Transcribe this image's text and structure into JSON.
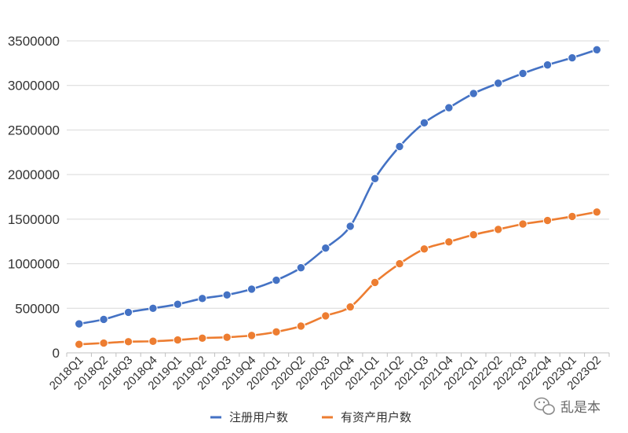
{
  "chart_data": {
    "type": "line",
    "title": "",
    "xlabel": "",
    "ylabel": "",
    "ylim": [
      0,
      3500000
    ],
    "yticks": [
      0,
      500000,
      1000000,
      1500000,
      2000000,
      2500000,
      3000000,
      3500000
    ],
    "grid": true,
    "legend_position": "bottom",
    "categories": [
      "2018Q1",
      "2018Q2",
      "2018Q3",
      "2018Q4",
      "2019Q1",
      "2019Q2",
      "2019Q3",
      "2019Q4",
      "2020Q1",
      "2020Q2",
      "2020Q3",
      "2020Q4",
      "2021Q1",
      "2021Q2",
      "2021Q3",
      "2021Q4",
      "2022Q1",
      "2022Q2",
      "2022Q3",
      "2022Q4",
      "2023Q1",
      "2023Q2"
    ],
    "series": [
      {
        "name": "注册用户数",
        "color": "#4472c4",
        "values": [
          325000,
          375000,
          455000,
          500000,
          545000,
          610000,
          650000,
          715000,
          815000,
          955000,
          1175000,
          1420000,
          1955000,
          2315000,
          2580000,
          2750000,
          2910000,
          3025000,
          3135000,
          3230000,
          3310000,
          3400000
        ]
      },
      {
        "name": "有资产用户数",
        "color": "#ed7d31",
        "values": [
          95000,
          110000,
          125000,
          130000,
          145000,
          165000,
          175000,
          195000,
          235000,
          300000,
          415000,
          515000,
          790000,
          1000000,
          1165000,
          1245000,
          1325000,
          1385000,
          1445000,
          1485000,
          1530000,
          1580000
        ]
      }
    ]
  },
  "watermark": {
    "text": "乱是本",
    "icon": "wechat-icon"
  }
}
